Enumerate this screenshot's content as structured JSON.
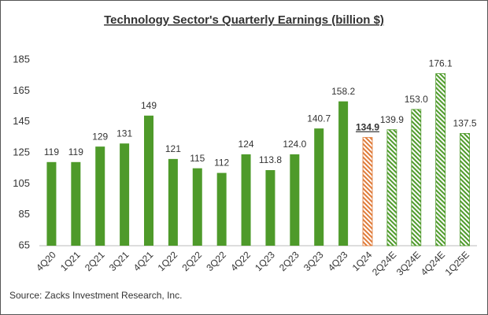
{
  "chart_data": {
    "type": "bar",
    "title": "Technology Sector's Quarterly Earnings (billion $)",
    "categories": [
      "4Q20",
      "1Q21",
      "2Q21",
      "3Q21",
      "4Q21",
      "1Q22",
      "2Q22",
      "3Q22",
      "4Q22",
      "1Q23",
      "2Q23",
      "3Q23",
      "4Q23",
      "1Q24",
      "2Q24E",
      "3Q24E",
      "4Q24E",
      "1Q25E"
    ],
    "values": [
      119,
      119,
      129,
      131,
      149,
      121,
      115,
      112,
      124,
      113.8,
      124.0,
      140.7,
      158.2,
      134.9,
      139.9,
      153.0,
      176.1,
      137.5
    ],
    "value_labels": [
      "119",
      "119",
      "129",
      "131",
      "149",
      "121",
      "115",
      "112",
      "124",
      "113.8",
      "124.0",
      "140.7",
      "158.2",
      "134.9",
      "139.9",
      "153.0",
      "176.1",
      "137.5"
    ],
    "colors": [
      "#4e9a2a",
      "#4e9a2a",
      "#4e9a2a",
      "#4e9a2a",
      "#4e9a2a",
      "#4e9a2a",
      "#4e9a2a",
      "#4e9a2a",
      "#4e9a2a",
      "#4e9a2a",
      "#4e9a2a",
      "#4e9a2a",
      "#4e9a2a",
      "#e07b39",
      "#4e9a2a",
      "#4e9a2a",
      "#4e9a2a",
      "#4e9a2a"
    ],
    "hatched": [
      false,
      false,
      false,
      false,
      false,
      false,
      false,
      false,
      false,
      false,
      false,
      false,
      false,
      true,
      true,
      true,
      true,
      true
    ],
    "ylim": [
      65,
      185
    ],
    "yticks": [
      65,
      85,
      105,
      125,
      145,
      165,
      185
    ],
    "grid": false,
    "source": "Source: Zacks Investment Research, Inc."
  }
}
